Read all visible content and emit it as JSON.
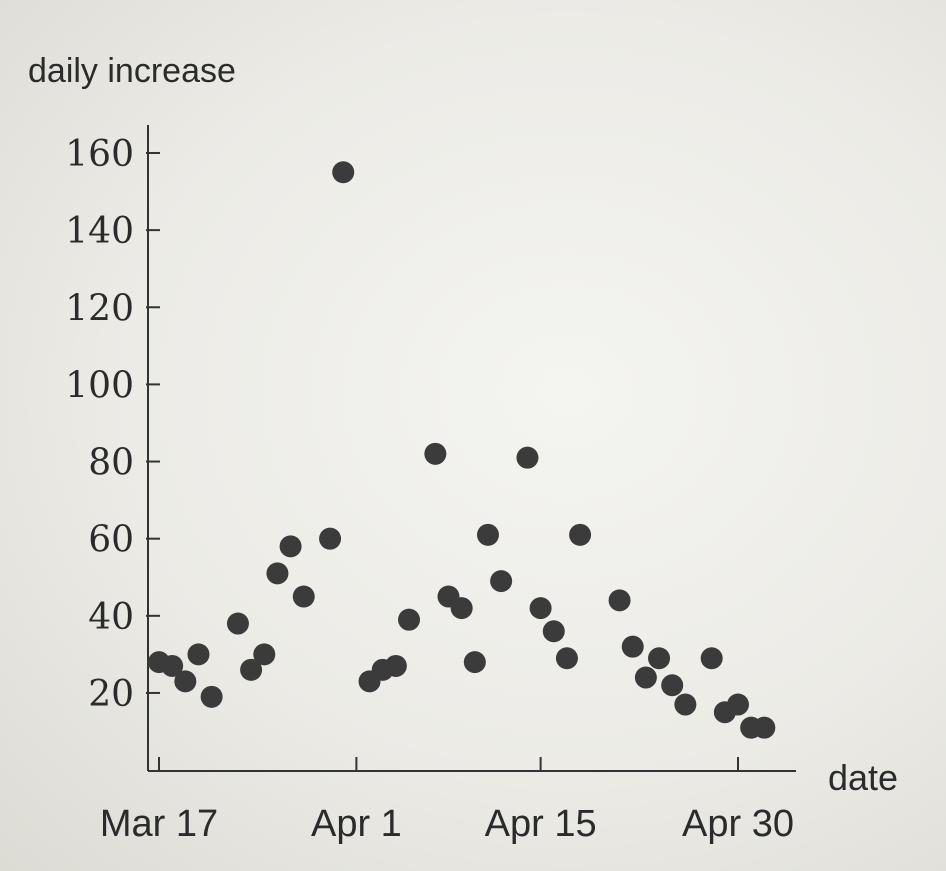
{
  "chart_data": {
    "type": "scatter",
    "title": "",
    "ylabel": "daily increase",
    "xlabel": "date",
    "ylim": [
      0,
      170
    ],
    "yticks": [
      20,
      40,
      60,
      80,
      100,
      120,
      140,
      160
    ],
    "xlim": [
      "2020-03-17",
      "2020-05-03"
    ],
    "xticks": [
      {
        "date": "2020-03-17",
        "label": "Mar 17"
      },
      {
        "date": "2020-04-01",
        "label": "Apr 1"
      },
      {
        "date": "2020-04-15",
        "label": "Apr 15"
      },
      {
        "date": "2020-04-30",
        "label": "Apr 30"
      }
    ],
    "grid": false,
    "point_color": "#3b3b3b",
    "points": [
      {
        "x": "2020-03-17",
        "y": 28
      },
      {
        "x": "2020-03-18",
        "y": 27
      },
      {
        "x": "2020-03-19",
        "y": 23
      },
      {
        "x": "2020-03-20",
        "y": 30
      },
      {
        "x": "2020-03-21",
        "y": 19
      },
      {
        "x": "2020-03-23",
        "y": 38
      },
      {
        "x": "2020-03-24",
        "y": 26
      },
      {
        "x": "2020-03-25",
        "y": 30
      },
      {
        "x": "2020-03-26",
        "y": 51
      },
      {
        "x": "2020-03-27",
        "y": 58
      },
      {
        "x": "2020-03-28",
        "y": 45
      },
      {
        "x": "2020-03-30",
        "y": 60
      },
      {
        "x": "2020-03-31",
        "y": 155
      },
      {
        "x": "2020-04-02",
        "y": 23
      },
      {
        "x": "2020-04-03",
        "y": 26
      },
      {
        "x": "2020-04-04",
        "y": 27
      },
      {
        "x": "2020-04-05",
        "y": 39
      },
      {
        "x": "2020-04-07",
        "y": 82
      },
      {
        "x": "2020-04-08",
        "y": 45
      },
      {
        "x": "2020-04-09",
        "y": 42
      },
      {
        "x": "2020-04-10",
        "y": 28
      },
      {
        "x": "2020-04-11",
        "y": 61
      },
      {
        "x": "2020-04-12",
        "y": 49
      },
      {
        "x": "2020-04-14",
        "y": 81
      },
      {
        "x": "2020-04-15",
        "y": 42
      },
      {
        "x": "2020-04-16",
        "y": 36
      },
      {
        "x": "2020-04-17",
        "y": 29
      },
      {
        "x": "2020-04-18",
        "y": 61
      },
      {
        "x": "2020-04-21",
        "y": 44
      },
      {
        "x": "2020-04-22",
        "y": 32
      },
      {
        "x": "2020-04-23",
        "y": 24
      },
      {
        "x": "2020-04-24",
        "y": 29
      },
      {
        "x": "2020-04-25",
        "y": 22
      },
      {
        "x": "2020-04-26",
        "y": 17
      },
      {
        "x": "2020-04-28",
        "y": 29
      },
      {
        "x": "2020-04-29",
        "y": 15
      },
      {
        "x": "2020-04-30",
        "y": 17
      },
      {
        "x": "2020-05-01",
        "y": 11
      },
      {
        "x": "2020-05-02",
        "y": 11
      }
    ]
  }
}
